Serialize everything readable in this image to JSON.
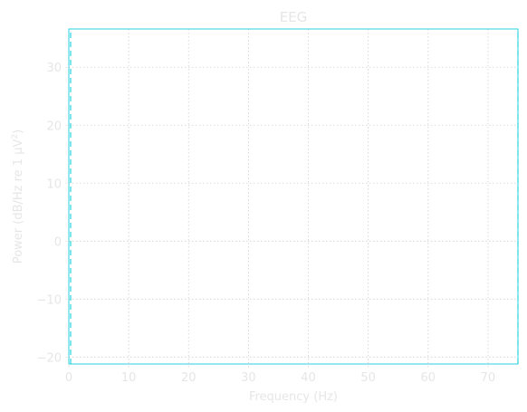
{
  "chart_data": {
    "type": "line",
    "title": "EEG",
    "xlabel": "Frequency (Hz)",
    "ylabel_prefix": "Power (dB/Hz re 1 μV",
    "ylabel_sup": "2",
    "ylabel_suffix": ")",
    "xlim": [
      0,
      75
    ],
    "ylim": [
      -21.2,
      36.6
    ],
    "xticks": [
      0,
      10,
      20,
      30,
      40,
      50,
      60,
      70
    ],
    "yticks": [
      -20,
      -10,
      0,
      10,
      20,
      30
    ],
    "xtick_labels": [
      "0",
      "10",
      "20",
      "30",
      "40",
      "50",
      "60",
      "70"
    ],
    "ytick_labels": [
      "−20",
      "−10",
      "0",
      "10",
      "20",
      "30"
    ],
    "grid": true,
    "grid_style": "dotted",
    "colors": {
      "frame": "#29d3e0",
      "grid": "#d0d0d0",
      "text": "#e6e6e6",
      "tick": "#e6e6e6"
    },
    "series": [
      {
        "style": "dashed",
        "color": "#29d3e0",
        "x": [
          0.3,
          0.3
        ],
        "y": [
          -21.2,
          36.6
        ]
      },
      {
        "style": "dashed",
        "color": "#29d3e0",
        "x": [
          75,
          75
        ],
        "y": [
          -21.2,
          36.6
        ]
      }
    ]
  }
}
